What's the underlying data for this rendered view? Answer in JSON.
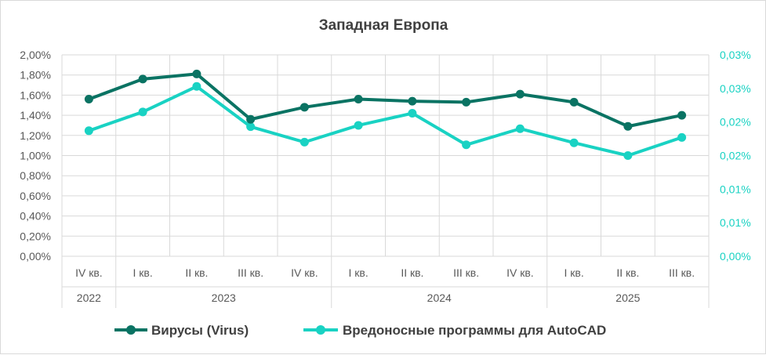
{
  "chart_data": {
    "type": "line",
    "title": "Западная Европа",
    "categories": [
      "IV кв.",
      "I кв.",
      "II кв.",
      "III кв.",
      "IV кв.",
      "I кв.",
      "II кв.",
      "III кв.",
      "IV кв.",
      "I кв.",
      "II кв.",
      "III кв."
    ],
    "year_groups": [
      {
        "label": "2022",
        "count": 1
      },
      {
        "label": "2023",
        "count": 4
      },
      {
        "label": "2024",
        "count": 4
      },
      {
        "label": "2025",
        "count": 3
      }
    ],
    "y_left": {
      "min": 0,
      "max": 0.02,
      "ticks": [
        "0,00%",
        "0,20%",
        "0,40%",
        "0,60%",
        "0,80%",
        "1,00%",
        "1,20%",
        "1,40%",
        "1,60%",
        "1,80%",
        "2,00%"
      ]
    },
    "y_right": {
      "min": 0,
      "max": 0.0003,
      "ticks": [
        "0,00%",
        "0,01%",
        "0,01%",
        "0,02%",
        "0,02%",
        "0,03%",
        "0,03%"
      ]
    },
    "series": [
      {
        "name": "Вирусы (Virus)",
        "axis": "left",
        "color": "#0a7363",
        "values": [
          0.0156,
          0.0176,
          0.0181,
          0.0136,
          0.0148,
          0.0156,
          0.0154,
          0.0153,
          0.0161,
          0.0153,
          0.0129,
          0.014
        ]
      },
      {
        "name": "Вредоносные программы для AutoCAD",
        "axis": "right",
        "color": "#19d2c3",
        "values": [
          0.000187,
          0.000215,
          0.000253,
          0.000193,
          0.00017,
          0.000195,
          0.000213,
          0.000166,
          0.00019,
          0.000169,
          0.00015,
          0.000177
        ]
      }
    ],
    "grid": true,
    "legend": "bottom"
  },
  "colors": {
    "left_axis_text": "#595959",
    "right_axis_text": "#19d2c3",
    "grid": "#d9d9d9"
  }
}
